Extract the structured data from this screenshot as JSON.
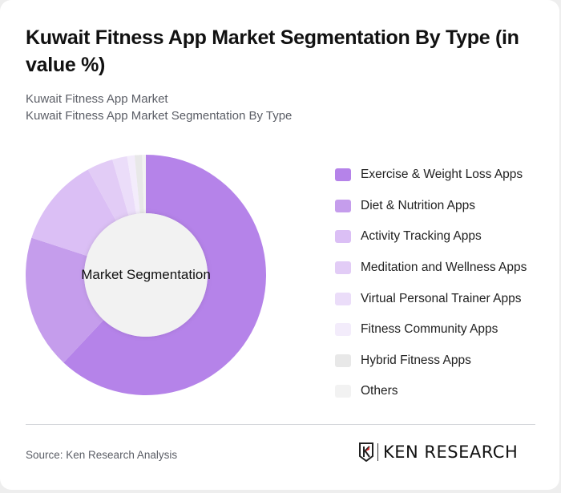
{
  "header": {
    "title": "Kuwait Fitness App Market Segmentation By Type (in value %)",
    "subtitle_line1": "Kuwait Fitness App Market",
    "subtitle_line2": "Kuwait Fitness App Market Segmentation By Type"
  },
  "chart_data": {
    "type": "pie",
    "variant": "donut",
    "title": "Kuwait Fitness App Market Segmentation By Type (in value %)",
    "center_label": "Market Segmentation",
    "categories": [
      "Exercise & Weight Loss Apps",
      "Diet & Nutrition Apps",
      "Activity Tracking Apps",
      "Meditation and Wellness Apps",
      "Virtual Personal Trainer Apps",
      "Fitness Community Apps",
      "Hybrid Fitness Apps",
      "Others"
    ],
    "values": [
      62,
      18,
      12,
      3.5,
      2,
      1,
      1,
      0.5
    ],
    "colors": [
      "#b583e9",
      "#c59dec",
      "#dbbff5",
      "#e2ccf6",
      "#ebddf9",
      "#f3ecfb",
      "#e8e8e8",
      "#f2f2f2"
    ],
    "legend_position": "right",
    "start_angle": "top, clockwise"
  },
  "footer": {
    "source": "Source: Ken Research Analysis",
    "logo_text": "KEN RESEARCH"
  }
}
